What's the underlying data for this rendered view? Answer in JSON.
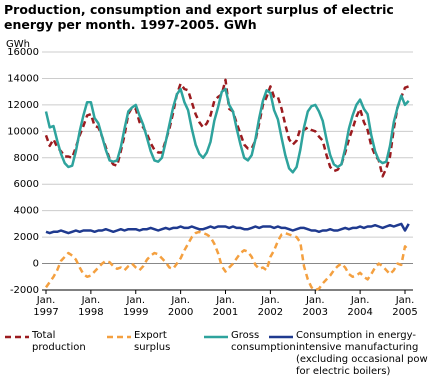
{
  "chart_data": {
    "type": "line",
    "title": "Production, consumption and export surplus of electric energy per month. 1997-2005. GWh",
    "y_label": "GWh",
    "categories": [
      "Jan. 1997",
      null,
      null,
      null,
      null,
      null,
      null,
      null,
      null,
      null,
      null,
      null,
      "Jan. 1998",
      null,
      null,
      null,
      null,
      null,
      null,
      null,
      null,
      null,
      null,
      null,
      "Jan. 1999",
      null,
      null,
      null,
      null,
      null,
      null,
      null,
      null,
      null,
      null,
      null,
      "Jan. 2000",
      null,
      null,
      null,
      null,
      null,
      null,
      null,
      null,
      null,
      null,
      null,
      "Jan. 2001",
      null,
      null,
      null,
      null,
      null,
      null,
      null,
      null,
      null,
      null,
      null,
      "Jan. 2002",
      null,
      null,
      null,
      null,
      null,
      null,
      null,
      null,
      null,
      null,
      null,
      "Jan. 2003",
      null,
      null,
      null,
      null,
      null,
      null,
      null,
      null,
      null,
      null,
      null,
      "Jan. 2004",
      null,
      null,
      null,
      null,
      null,
      null,
      null,
      null,
      null,
      null,
      null,
      "Jan. 2005",
      null
    ],
    "ylim": [
      -2000,
      16000
    ],
    "yticks": [
      -2000,
      0,
      2000,
      4000,
      6000,
      8000,
      10000,
      12000,
      14000,
      16000
    ],
    "grid": true,
    "series": [
      {
        "name": "Total production",
        "color": "#9b1b1f",
        "dashed": true,
        "values": [
          9700,
          8900,
          9400,
          8800,
          8500,
          8100,
          8100,
          8000,
          8800,
          9700,
          10400,
          11200,
          11300,
          10400,
          10300,
          9600,
          8800,
          7900,
          7500,
          7400,
          8500,
          9700,
          11300,
          11800,
          11700,
          10700,
          10300,
          9800,
          9100,
          8600,
          8400,
          8400,
          9300,
          10200,
          11400,
          12800,
          13600,
          13200,
          13100,
          12200,
          11300,
          10700,
          10300,
          10600,
          11200,
          12300,
          12600,
          12800,
          13900,
          11700,
          11500,
          10600,
          9800,
          9000,
          8700,
          8700,
          9300,
          10600,
          12000,
          12600,
          13400,
          12600,
          12600,
          11700,
          10500,
          9400,
          9000,
          9300,
          10200,
          10100,
          10300,
          10100,
          10000,
          9600,
          9300,
          8200,
          7300,
          7000,
          7100,
          7500,
          8400,
          9400,
          10200,
          11100,
          11700,
          10700,
          10100,
          8900,
          8200,
          7800,
          6600,
          7200,
          8100,
          10200,
          11800,
          12600,
          13300,
          13400
        ]
      },
      {
        "name": "Export surplus",
        "color": "#f4a040",
        "dashed": true,
        "values": [
          -1800,
          -1400,
          -1000,
          -500,
          200,
          500,
          800,
          600,
          300,
          -300,
          -800,
          -1000,
          -900,
          -600,
          -300,
          0,
          200,
          100,
          -200,
          -400,
          -300,
          -500,
          -200,
          0,
          -300,
          -500,
          -200,
          300,
          600,
          800,
          700,
          400,
          100,
          -300,
          -400,
          0,
          400,
          1000,
          1500,
          2000,
          2300,
          2400,
          2300,
          2200,
          2000,
          1500,
          800,
          -200,
          -600,
          -300,
          0,
          400,
          800,
          1000,
          900,
          500,
          -100,
          -400,
          -300,
          -500,
          500,
          1000,
          1700,
          2200,
          2300,
          2200,
          2100,
          2000,
          1600,
          -200,
          -1200,
          -1800,
          -2000,
          -1900,
          -1500,
          -1200,
          -900,
          -500,
          -200,
          0,
          -300,
          -800,
          -1000,
          -900,
          -700,
          -1000,
          -1200,
          -800,
          -300,
          0,
          -200,
          -500,
          -800,
          -500,
          0,
          -100,
          1300,
          1000
        ]
      },
      {
        "name": "Gross consumption",
        "color": "#2ea39d",
        "dashed": false,
        "values": [
          11500,
          10300,
          10400,
          9300,
          8300,
          7600,
          7300,
          7400,
          8500,
          10000,
          11200,
          12200,
          12200,
          11000,
          10600,
          9600,
          8600,
          7800,
          7700,
          7800,
          8800,
          10200,
          11500,
          11800,
          12000,
          11200,
          10500,
          9500,
          8500,
          7800,
          7700,
          8000,
          9200,
          10500,
          11800,
          12800,
          13200,
          12200,
          11600,
          10200,
          9000,
          8300,
          8000,
          8400,
          9200,
          10800,
          11800,
          13000,
          13200,
          12000,
          11500,
          10200,
          9000,
          8000,
          7800,
          8200,
          9400,
          11000,
          12300,
          13100,
          12900,
          11600,
          10900,
          9500,
          8200,
          7200,
          6900,
          7300,
          8600,
          10300,
          11500,
          11900,
          12000,
          11500,
          10800,
          9400,
          8200,
          7500,
          7300,
          7500,
          8700,
          10200,
          11200,
          12000,
          12400,
          11700,
          11300,
          9700,
          8500,
          7800,
          7600,
          7700,
          8900,
          10700,
          11800,
          12700,
          12000,
          12300
        ]
      },
      {
        "name": "Consumption in energy-intensive manufacturing (excluding occasional power for electric boilers)",
        "color": "#1f3a8f",
        "dashed": false,
        "values": [
          2400,
          2300,
          2400,
          2400,
          2500,
          2400,
          2300,
          2400,
          2500,
          2400,
          2500,
          2500,
          2500,
          2400,
          2500,
          2500,
          2600,
          2500,
          2400,
          2500,
          2600,
          2500,
          2600,
          2600,
          2600,
          2500,
          2600,
          2600,
          2700,
          2600,
          2500,
          2600,
          2700,
          2600,
          2700,
          2700,
          2800,
          2700,
          2700,
          2800,
          2700,
          2600,
          2600,
          2700,
          2800,
          2700,
          2800,
          2800,
          2800,
          2700,
          2800,
          2700,
          2700,
          2600,
          2600,
          2700,
          2800,
          2700,
          2800,
          2800,
          2800,
          2700,
          2800,
          2700,
          2700,
          2600,
          2500,
          2600,
          2700,
          2700,
          2600,
          2500,
          2500,
          2400,
          2500,
          2500,
          2600,
          2500,
          2500,
          2600,
          2700,
          2600,
          2700,
          2700,
          2800,
          2700,
          2800,
          2800,
          2900,
          2800,
          2700,
          2800,
          2900,
          2800,
          2900,
          3000,
          2500,
          3000
        ]
      }
    ]
  }
}
